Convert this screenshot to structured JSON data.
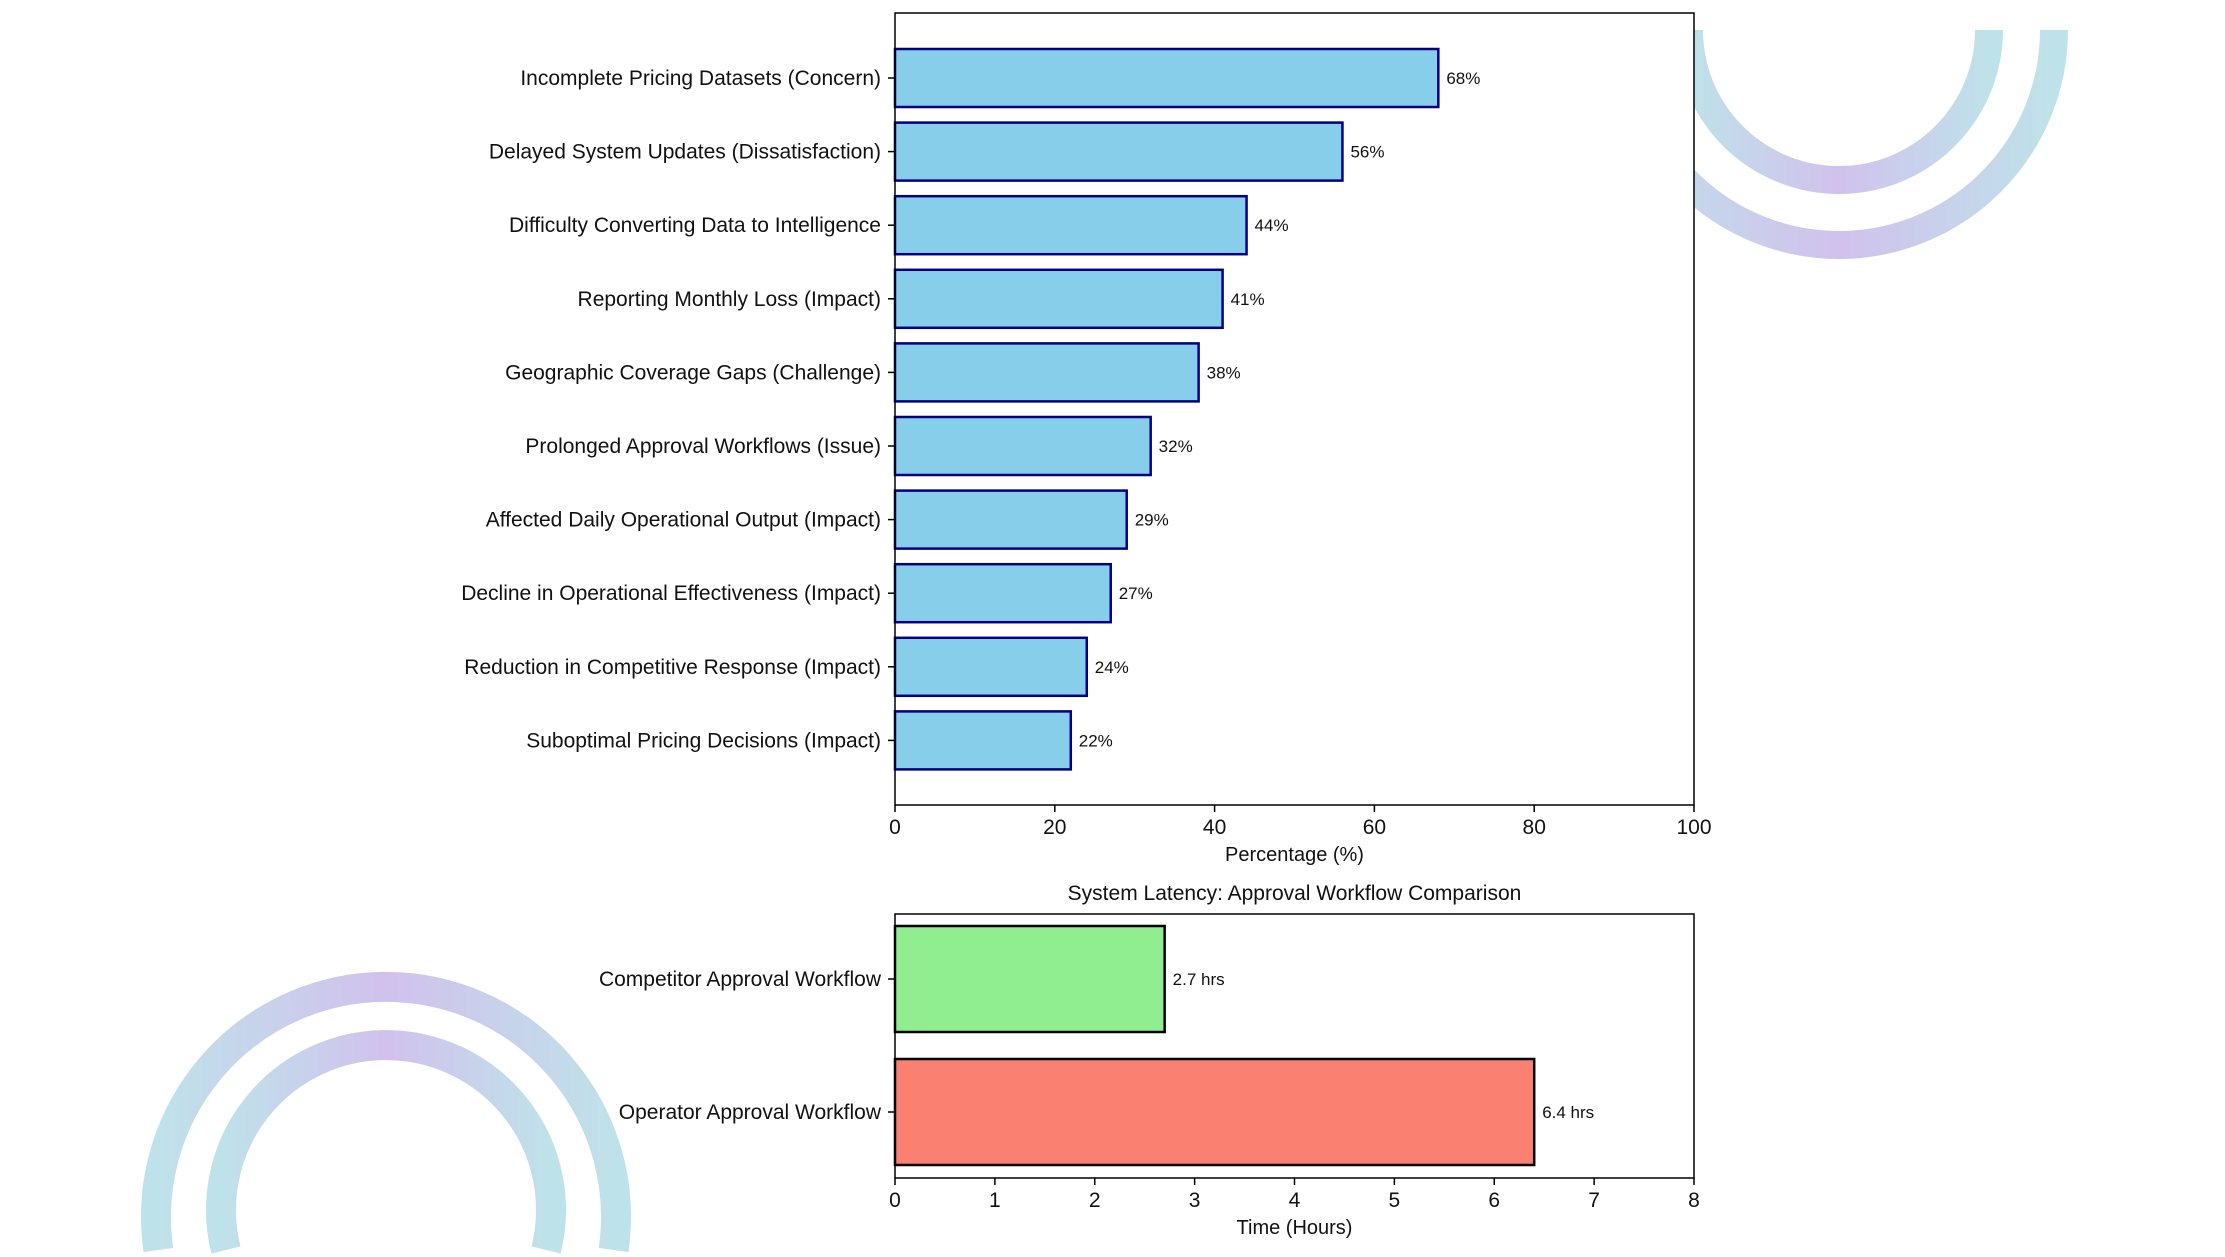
{
  "chart_data": [
    {
      "type": "bar",
      "orientation": "horizontal",
      "title": "",
      "categories": [
        "Incomplete Pricing Datasets (Concern)",
        "Delayed System Updates (Dissatisfaction)",
        "Difficulty Converting Data to Intelligence",
        "Reporting Monthly Loss (Impact)",
        "Geographic Coverage Gaps (Challenge)",
        "Prolonged Approval Workflows (Issue)",
        "Affected Daily Operational Output (Impact)",
        "Decline in Operational Effectiveness (Impact)",
        "Reduction in Competitive Response (Impact)",
        "Suboptimal Pricing Decisions (Impact)"
      ],
      "values": [
        68,
        56,
        44,
        41,
        38,
        32,
        29,
        27,
        24,
        22
      ],
      "data_labels": [
        "68%",
        "56%",
        "44%",
        "41%",
        "38%",
        "32%",
        "29%",
        "27%",
        "24%",
        "22%"
      ],
      "xlabel": "Percentage (%)",
      "xlim": [
        0,
        100
      ],
      "xticks": [
        "0",
        "20",
        "40",
        "60",
        "80",
        "100"
      ],
      "bar_color": "#87ceeb",
      "edge_color": "#000080",
      "grid": false
    },
    {
      "type": "bar",
      "orientation": "horizontal",
      "title": "System Latency: Approval Workflow Comparison",
      "categories": [
        "Competitor Approval Workflow",
        "Operator Approval Workflow"
      ],
      "values": [
        2.7,
        6.4
      ],
      "data_labels": [
        "2.7 hrs",
        "6.4 hrs"
      ],
      "colors": [
        "#90ee90",
        "#fa8072"
      ],
      "edge_color": "#000000",
      "xlabel": "Time (Hours)",
      "xlim": [
        0,
        8
      ],
      "xticks": [
        "0",
        "1",
        "2",
        "3",
        "4",
        "5",
        "6",
        "7",
        "8"
      ],
      "grid": false
    }
  ],
  "decoration": {
    "ring_colors": [
      "#c9b6ea",
      "#b3dde6"
    ]
  }
}
